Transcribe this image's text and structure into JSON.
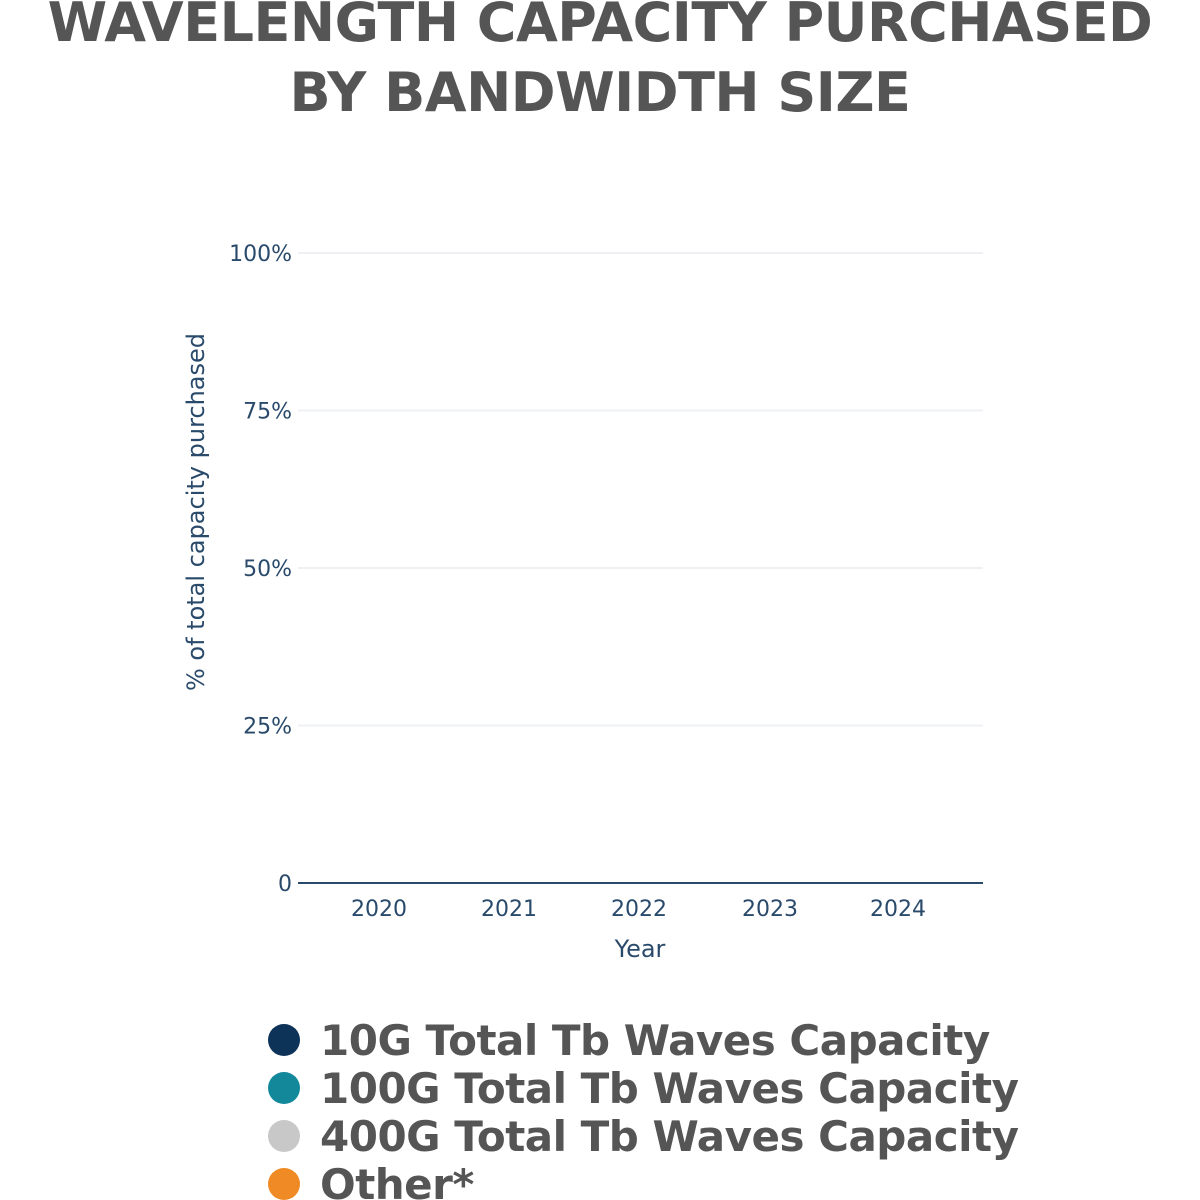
{
  "chart_data": {
    "type": "bar",
    "title_lines": [
      "WAVELENGTH CAPACITY PURCHASED",
      "BY BANDWIDTH SIZE"
    ],
    "xlabel": "Year",
    "ylabel": "% of total capacity purchased",
    "categories": [
      "2020",
      "2021",
      "2022",
      "2023",
      "2024"
    ],
    "y_ticks": [
      "0",
      "25%",
      "50%",
      "75%",
      "100%"
    ],
    "ylim": [
      0,
      100
    ],
    "grid": true,
    "legend_position": "bottom",
    "series": [
      {
        "name": "10G Total Tb Waves Capacity",
        "color": "#0d3358",
        "values": [
          0,
          0,
          0,
          0,
          0
        ]
      },
      {
        "name": "100G Total Tb Waves Capacity",
        "color": "#12889a",
        "values": [
          0,
          0,
          0,
          0,
          0
        ]
      },
      {
        "name": "400G Total Tb Waves Capacity",
        "color": "#c8c8c8",
        "values": [
          0,
          0,
          0,
          0,
          0
        ]
      },
      {
        "name": "Other*",
        "color": "#f08a24",
        "values": [
          0,
          0,
          0,
          0,
          0
        ]
      }
    ]
  }
}
